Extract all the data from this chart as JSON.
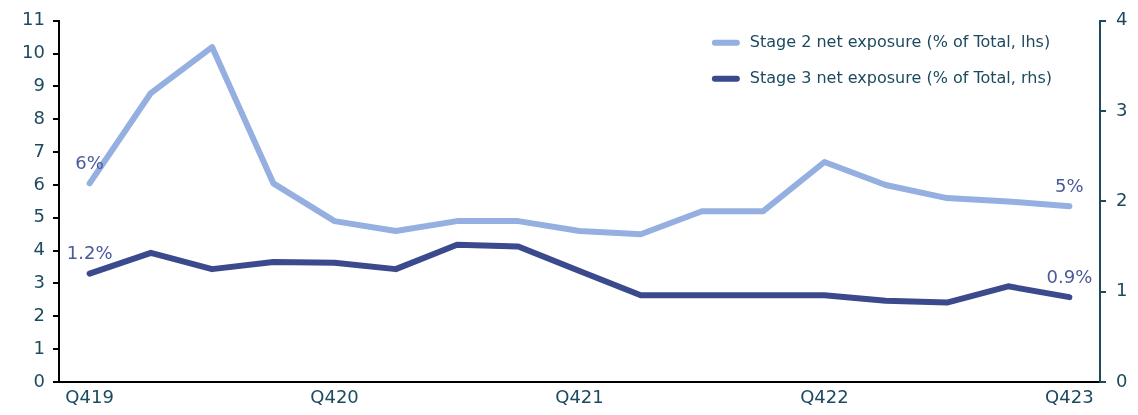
{
  "chart_data": {
    "type": "line",
    "categories": [
      "Q419",
      null,
      null,
      null,
      "Q420",
      null,
      null,
      null,
      "Q421",
      null,
      null,
      null,
      "Q422",
      null,
      null,
      null,
      "Q423"
    ],
    "series": [
      {
        "name": "Stage 2 net exposure (% of Total, lhs)",
        "color": "#95b0e0",
        "values": [
          6.05,
          8.8,
          10.2,
          6.05,
          4.9,
          4.6,
          4.9,
          4.9,
          4.6,
          4.5,
          5.2,
          5.2,
          6.7,
          6.0,
          5.6,
          5.5,
          5.35
        ],
        "value_labels": [
          "6%",
          null,
          null,
          null,
          null,
          null,
          null,
          null,
          null,
          null,
          null,
          null,
          null,
          null,
          null,
          null,
          "5%"
        ]
      },
      {
        "name": "Stage 3 net exposure (% of Total, rhs)",
        "color": "#3a4a8c",
        "axis": "y2",
        "values": [
          1.2,
          1.43,
          1.25,
          1.33,
          1.32,
          1.25,
          1.52,
          1.5,
          1.23,
          0.96,
          0.96,
          0.96,
          0.96,
          0.9,
          0.88,
          1.06,
          0.94
        ],
        "value_labels": [
          "1.2%",
          null,
          null,
          null,
          null,
          null,
          null,
          null,
          null,
          null,
          null,
          null,
          null,
          null,
          null,
          null,
          "0.9%"
        ]
      }
    ],
    "ylim": [
      0,
      11
    ],
    "yticks": [
      0,
      1,
      2,
      3,
      4,
      5,
      6,
      7,
      8,
      9,
      10,
      11
    ],
    "y2lim": [
      0,
      4
    ],
    "y2ticks": [
      0,
      1,
      2,
      3,
      4
    ],
    "legend": "top right",
    "marker": "none",
    "line_style": "solid"
  }
}
